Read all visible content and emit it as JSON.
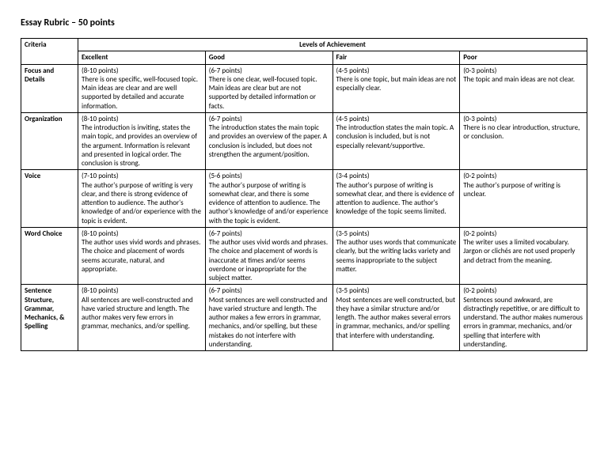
{
  "title": "Essay Rubric – 50 points",
  "banner": "Levels of Achievement",
  "columns": [
    "Criteria",
    "Excellent",
    "Good",
    "Fair",
    "Poor"
  ],
  "rows": [
    {
      "criteria": "Focus and Details",
      "excellent": {
        "pts": "(8-10 points)",
        "txt": "There is one specific, well-focused topic. Main ideas are clear and are well supported by detailed and accurate information."
      },
      "good": {
        "pts": "(6-7 points)",
        "txt": "There is one clear, well-focused topic. Main ideas are clear but are not supported by detailed information or facts."
      },
      "fair": {
        "pts": "(4-5 points)",
        "txt": "There is one topic, but main ideas are not especially clear."
      },
      "poor": {
        "pts": "(0-3 points)",
        "txt": "The topic and main ideas are not clear."
      }
    },
    {
      "criteria": "Organization",
      "excellent": {
        "pts": "(8-10 points)",
        "txt": "The introduction is inviting, states the main topic, and provides an overview of the argument. Information is relevant and presented in logical order. The conclusion is strong."
      },
      "good": {
        "pts": "(6-7 points)",
        "txt": "The introduction states the main topic and provides an overview of the paper. A conclusion is included, but does not strengthen the argument/position."
      },
      "fair": {
        "pts": "(4-5 points)",
        "txt": "The introduction states the main topic. A conclusion is included, but is not especially relevant/supportive."
      },
      "poor": {
        "pts": "(0-3 points)",
        "txt": "There is no clear introduction, structure, or conclusion."
      }
    },
    {
      "criteria": "Voice",
      "excellent": {
        "pts": "(7-10 points)",
        "txt": "The author's purpose of writing is very clear, and there is strong evidence of attention to audience. The author's knowledge of and/or experience with the topic is evident."
      },
      "good": {
        "pts": "(5-6 points)",
        "txt": "The author's purpose of writing is somewhat clear, and there is some evidence of attention to audience. The author's knowledge of and/or experience with the topic is evident."
      },
      "fair": {
        "pts": "(3-4 points)",
        "txt": "The author's purpose of writing is somewhat clear, and there is evidence of attention to audience. The author's knowledge of the topic seems limited."
      },
      "poor": {
        "pts": "(0-2 points)",
        "txt": "The author's purpose of writing is unclear."
      }
    },
    {
      "criteria": "Word Choice",
      "excellent": {
        "pts": "(8-10 points)",
        "txt": "The author uses vivid words and phrases. The choice and placement of words seems accurate, natural, and appropriate."
      },
      "good": {
        "pts": "(6-7 points)",
        "txt": "The author uses vivid words and phrases. The choice and placement of words is inaccurate at times and/or seems overdone or inappropriate for the subject matter."
      },
      "fair": {
        "pts": "(3-5 points)",
        "txt": "The author uses words that communicate clearly, but the writing lacks variety and seems inappropriate to the subject matter."
      },
      "poor": {
        "pts": "(0-2 points)",
        "txt": "The writer uses a limited vocabulary. Jargon or clichés are not used properly and detract from the meaning."
      }
    },
    {
      "criteria": "Sentence Structure, Grammar, Mechanics, & Spelling",
      "excellent": {
        "pts": "(8-10 points)",
        "txt": "All sentences are well-constructed and have varied structure and length. The author makes very few errors in grammar, mechanics, and/or spelling."
      },
      "good": {
        "pts": "(6-7 points)",
        "txt": "Most sentences are well constructed and have varied structure and length. The author makes a few errors in grammar, mechanics, and/or spelling, but these mistakes do not interfere with understanding."
      },
      "fair": {
        "pts": "(3-5 points)",
        "txt": "Most sentences are well constructed, but they have a similar structure and/or length. The author makes several errors in grammar, mechanics, and/or spelling that interfere with understanding."
      },
      "poor": {
        "pts": "(0-2 points)",
        "txt": "Sentences sound awkward, are distractingly repetitive, or are difficult to understand. The author makes numerous errors in grammar, mechanics, and/or spelling that interfere with understanding."
      }
    }
  ]
}
